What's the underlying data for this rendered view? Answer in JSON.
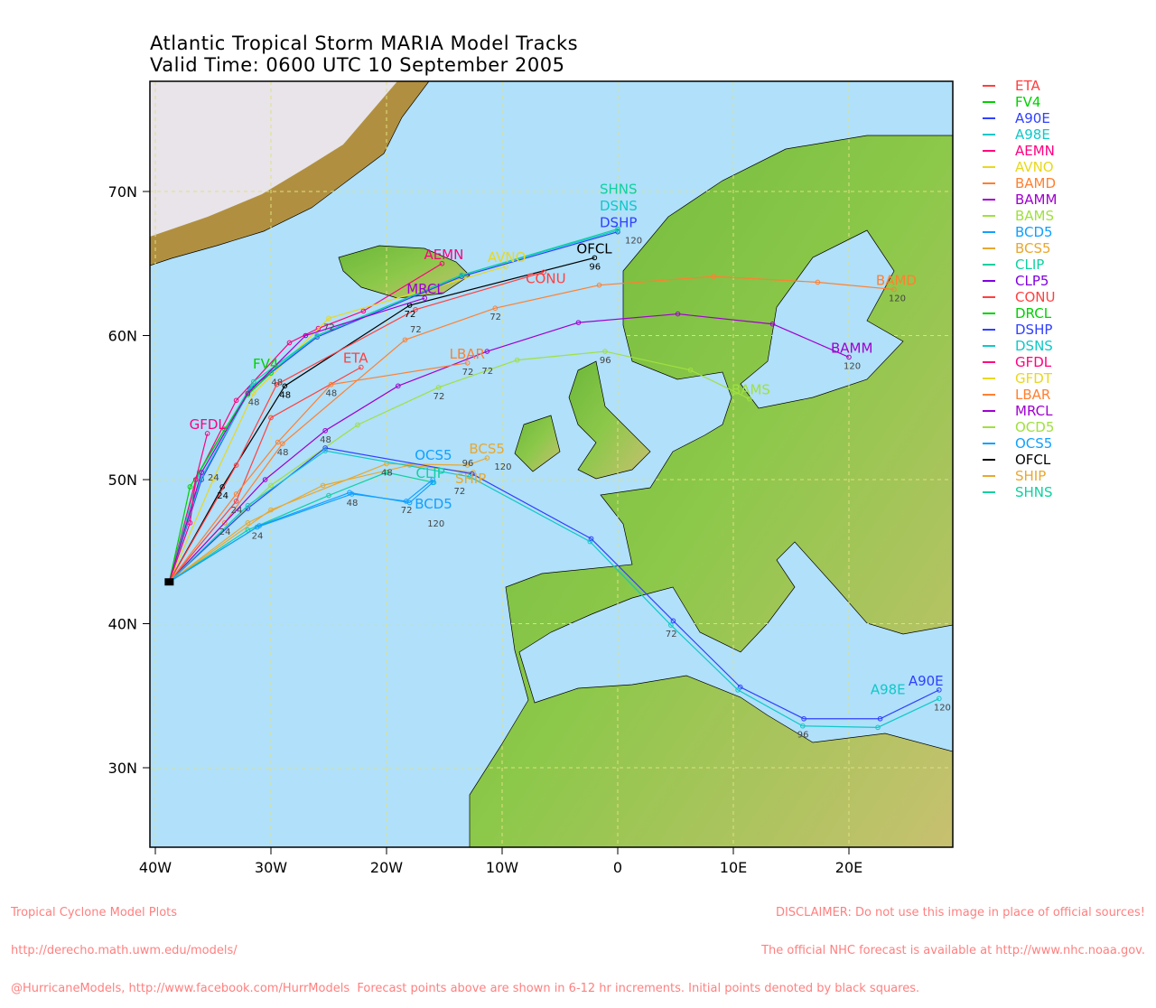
{
  "title": {
    "line1": "Atlantic Tropical Storm MARIA Model Tracks",
    "line2": "Valid Time: 0600 UTC 10 September 2005"
  },
  "axes": {
    "lon_ticks": [
      {
        "v": -40,
        "label": "40W"
      },
      {
        "v": -30,
        "label": "30W"
      },
      {
        "v": -20,
        "label": "20W"
      },
      {
        "v": -10,
        "label": "10W"
      },
      {
        "v": 0,
        "label": "0"
      },
      {
        "v": 10,
        "label": "10E"
      },
      {
        "v": 20,
        "label": "20E"
      }
    ],
    "lat_ticks": [
      {
        "v": 70,
        "label": "70N"
      },
      {
        "v": 60,
        "label": "60N"
      },
      {
        "v": 50,
        "label": "50N"
      },
      {
        "v": 40,
        "label": "40N"
      },
      {
        "v": 30,
        "label": "30N"
      }
    ],
    "lon_range": [
      -40.5,
      29
    ],
    "lat_range": [
      24.6,
      77.6
    ],
    "grid": true
  },
  "colors": {
    "ocean": "#b0e0fa",
    "land": "#7cc040",
    "ice": "#e8e4ea",
    "footer": "#ff8080"
  },
  "legend": [
    {
      "name": "ETA",
      "color": "#ff4040"
    },
    {
      "name": "FV4",
      "color": "#00d000"
    },
    {
      "name": "A90E",
      "color": "#3040ff"
    },
    {
      "name": "A98E",
      "color": "#10c8c8"
    },
    {
      "name": "AEMN",
      "color": "#ff0080"
    },
    {
      "name": "AVNO",
      "color": "#e8d820"
    },
    {
      "name": "BAMD",
      "color": "#ff8030"
    },
    {
      "name": "BAMM",
      "color": "#a000d0"
    },
    {
      "name": "BAMS",
      "color": "#a0e040"
    },
    {
      "name": "BCD5",
      "color": "#10a0ff"
    },
    {
      "name": "BCS5",
      "color": "#e8a830"
    },
    {
      "name": "CLIP",
      "color": "#10d0a0"
    },
    {
      "name": "CLP5",
      "color": "#8000e0"
    },
    {
      "name": "CONU",
      "color": "#ff4040"
    },
    {
      "name": "DRCL",
      "color": "#00d000"
    },
    {
      "name": "DSHP",
      "color": "#3040ff"
    },
    {
      "name": "DSNS",
      "color": "#10c8c8"
    },
    {
      "name": "GFDL",
      "color": "#ff0080"
    },
    {
      "name": "GFDT",
      "color": "#e8d820"
    },
    {
      "name": "LBAR",
      "color": "#ff8030"
    },
    {
      "name": "MRCL",
      "color": "#a000d0"
    },
    {
      "name": "OCD5",
      "color": "#a0e040"
    },
    {
      "name": "OCS5",
      "color": "#10a0ff"
    },
    {
      "name": "OFCL",
      "color": "#000000"
    },
    {
      "name": "SHIP",
      "color": "#e8a830"
    },
    {
      "name": "SHNS",
      "color": "#10d0a0"
    }
  ],
  "tracks": [
    {
      "name": "OFCL",
      "color": "#000000",
      "pts": [
        [
          -38.8,
          42.9
        ],
        [
          -34.2,
          49.5,
          "24"
        ],
        [
          -28.8,
          56.5,
          "48"
        ],
        [
          -18,
          62.1,
          "72"
        ],
        [
          -2,
          65.4,
          "96"
        ]
      ]
    },
    {
      "name": "ETA",
      "color": "#ff4040",
      "pts": [
        [
          -38.8,
          42.9
        ],
        [
          -33,
          48.5,
          "24"
        ],
        [
          -30,
          54.3
        ],
        [
          -22.2,
          57.8
        ]
      ]
    },
    {
      "name": "AEMN",
      "color": "#ff0080",
      "pts": [
        [
          -38.8,
          42.9
        ],
        [
          -36.5,
          50
        ],
        [
          -33,
          55.5
        ],
        [
          -28.4,
          59.5
        ],
        [
          -25.9,
          60.5
        ],
        [
          -22,
          61.7
        ],
        [
          -15.2,
          65
        ]
      ]
    },
    {
      "name": "AVNO",
      "color": "#e8d820",
      "pts": [
        [
          -38.8,
          42.9
        ],
        [
          -35,
          50,
          "24"
        ],
        [
          -31.5,
          56,
          "48"
        ],
        [
          -25,
          61.2,
          "72"
        ],
        [
          -9.7,
          64.8
        ]
      ]
    },
    {
      "name": "CONU",
      "color": "#ff4040",
      "pts": [
        [
          -38.8,
          42.9
        ],
        [
          -33,
          51
        ],
        [
          -29.5,
          56.6,
          "48"
        ],
        [
          -17.5,
          61.8,
          "72"
        ],
        [
          -6.4,
          64.4
        ]
      ]
    },
    {
      "name": "DSHP",
      "color": "#3040ff",
      "pts": [
        [
          -38.8,
          42.9
        ],
        [
          -36,
          50
        ],
        [
          -31.8,
          56.3
        ],
        [
          -26,
          59.9
        ],
        [
          -13.5,
          64.1
        ],
        [
          0,
          67.2,
          "120"
        ]
      ]
    },
    {
      "name": "DSNS",
      "color": "#10c8c8",
      "pts": [
        [
          -38.8,
          42.9
        ],
        [
          -36,
          50.2
        ],
        [
          -31.6,
          56.5
        ],
        [
          -26,
          60
        ],
        [
          -13.5,
          64.2
        ],
        [
          0,
          67.3
        ]
      ]
    },
    {
      "name": "SHNS",
      "color": "#10d0a0",
      "pts": [
        [
          -38.8,
          42.9
        ],
        [
          -36.2,
          50.5
        ],
        [
          -31.5,
          56.8
        ],
        [
          -26,
          60
        ],
        [
          -13.5,
          64.2
        ],
        [
          0,
          67.4
        ]
      ]
    },
    {
      "name": "FV4",
      "color": "#00d000",
      "pts": [
        [
          -38.8,
          42.9
        ],
        [
          -37,
          49.5
        ],
        [
          -34,
          53.5
        ],
        [
          -32,
          55.9
        ],
        [
          -30,
          57.4
        ]
      ]
    },
    {
      "name": "MRCL",
      "color": "#a000d0",
      "pts": [
        [
          -38.8,
          42.9
        ],
        [
          -36,
          50.5
        ],
        [
          -32,
          56
        ],
        [
          -27,
          60
        ],
        [
          -16.7,
          62.6
        ]
      ]
    },
    {
      "name": "GFDL",
      "color": "#ff0080",
      "pts": [
        [
          -38.8,
          42.9
        ],
        [
          -37,
          47
        ],
        [
          -36.5,
          50
        ],
        [
          -35.5,
          53.2
        ]
      ]
    },
    {
      "name": "BAMD",
      "color": "#ff8030",
      "pts": [
        [
          -38.8,
          42.9
        ],
        [
          -34,
          47,
          "24"
        ],
        [
          -29,
          52.5,
          "48"
        ],
        [
          -18.4,
          59.7
        ],
        [
          -10.6,
          61.9,
          "72"
        ],
        [
          -1.6,
          63.5
        ],
        [
          8.3,
          64.1
        ],
        [
          17.3,
          63.7
        ],
        [
          23.9,
          63.2,
          "120"
        ]
      ]
    },
    {
      "name": "BAMM",
      "color": "#a000d0",
      "pts": [
        [
          -38.8,
          42.9
        ],
        [
          -30.5,
          50
        ],
        [
          -25.3,
          53.4,
          "48"
        ],
        [
          -19,
          56.5
        ],
        [
          -11.3,
          58.9,
          "72"
        ],
        [
          -3.4,
          60.9
        ],
        [
          5.2,
          61.5
        ],
        [
          13.4,
          60.8
        ],
        [
          20,
          58.5,
          "120"
        ]
      ]
    },
    {
      "name": "BAMS",
      "color": "#a0e040",
      "pts": [
        [
          -38.8,
          42.9
        ],
        [
          -30,
          49.6
        ],
        [
          -22.5,
          53.8
        ],
        [
          -15.5,
          56.4,
          "72"
        ],
        [
          -8.7,
          58.3
        ],
        [
          -1.1,
          58.9,
          "96"
        ],
        [
          6.3,
          57.6
        ],
        [
          11.4,
          55.6
        ]
      ]
    },
    {
      "name": "LBAR",
      "color": "#ff8030",
      "pts": [
        [
          -38.8,
          42.9
        ],
        [
          -33,
          49
        ],
        [
          -29.4,
          52.6
        ],
        [
          -24.8,
          56.6,
          "48"
        ],
        [
          -13,
          58.1,
          "72"
        ]
      ]
    },
    {
      "name": "BCS5",
      "color": "#e8a830",
      "pts": [
        [
          -38.8,
          42.9
        ],
        [
          -30,
          47.9
        ],
        [
          -20,
          51.1,
          "48"
        ],
        [
          -13,
          51,
          "96"
        ],
        [
          -11.3,
          51.5,
          "120"
        ]
      ]
    },
    {
      "name": "SHIP",
      "color": "#e8a830",
      "pts": [
        [
          -38.8,
          42.9
        ],
        [
          -32,
          47
        ],
        [
          -25.5,
          49.6
        ],
        [
          -18,
          51
        ],
        [
          -12.5,
          50.5
        ]
      ]
    },
    {
      "name": "CLIP",
      "color": "#10d0a0",
      "pts": [
        [
          -38.8,
          42.9
        ],
        [
          -32,
          46.5
        ],
        [
          -25,
          48.9
        ],
        [
          -20,
          50.5
        ],
        [
          -15.9,
          49.8,
          "72"
        ]
      ]
    },
    {
      "name": "A90E",
      "color": "#3040ff",
      "pts": [
        [
          -38.8,
          42.9
        ],
        [
          -32,
          48
        ],
        [
          -25.3,
          52.2
        ],
        [
          -12.6,
          50.4
        ],
        [
          -2.3,
          45.9
        ],
        [
          4.8,
          40.2
        ],
        [
          10.6,
          35.6
        ],
        [
          16.1,
          33.4
        ],
        [
          22.7,
          33.4
        ],
        [
          27.8,
          35.4
        ]
      ]
    },
    {
      "name": "A98E",
      "color": "#10c8c8",
      "pts": [
        [
          -38.8,
          42.9
        ],
        [
          -32,
          48.2
        ],
        [
          -25.3,
          52
        ],
        [
          -12.8,
          50.2
        ],
        [
          -2.4,
          45.7
        ],
        [
          4.6,
          39.9,
          "72"
        ],
        [
          10.4,
          35.4
        ],
        [
          16,
          32.9,
          "96"
        ],
        [
          22.5,
          32.8
        ],
        [
          27.8,
          34.8,
          "120"
        ]
      ]
    },
    {
      "name": "OCS5",
      "color": "#10a0ff",
      "pts": [
        [
          -38.8,
          42.9
        ],
        [
          -31.2,
          46.7,
          "24"
        ],
        [
          -23,
          49,
          "48"
        ],
        [
          -18.3,
          48.5,
          "72"
        ],
        [
          -16,
          50
        ]
      ]
    },
    {
      "name": "BCD5",
      "color": "#10a0ff",
      "pts": [
        [
          -38.8,
          42.9
        ],
        [
          -31,
          46.8
        ],
        [
          -23.2,
          49.1
        ],
        [
          -18,
          48.4
        ],
        [
          -16,
          49.8,
          "120"
        ]
      ]
    }
  ],
  "footer": {
    "left": [
      "Tropical Cyclone Model Plots",
      "http://derecho.math.uwm.edu/models/",
      "@HurricaneModels, http://www.facebook.com/HurrModels  Forecast points above are shown in 6-12 hr increments. Initial points denoted by black squares."
    ],
    "right": [
      "DISCLAIMER: Do not use this image in place of official sources!",
      "The official NHC forecast is available at http://www.nhc.noaa.gov."
    ]
  }
}
